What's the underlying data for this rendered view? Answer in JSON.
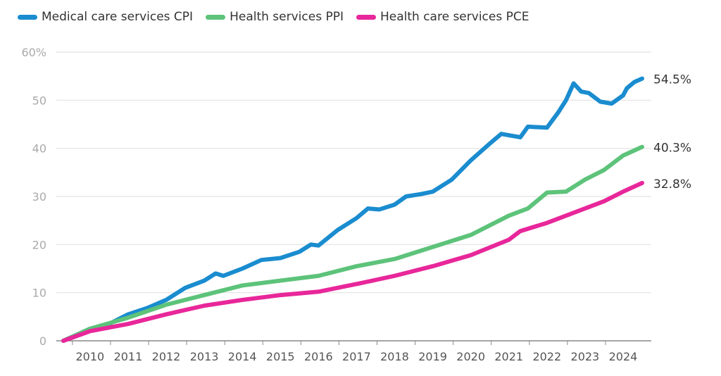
{
  "chart_data": {
    "type": "line",
    "title": "",
    "xlabel": "",
    "ylabel": "",
    "xlim": [
      2009.3,
      2024.5
    ],
    "ylim": [
      0,
      60
    ],
    "yticks": [
      0,
      10,
      20,
      30,
      40,
      50,
      60
    ],
    "ytick_labels": [
      "0",
      "10",
      "20",
      "30",
      "40",
      "50",
      "60%"
    ],
    "xticks": [
      2010,
      2011,
      2012,
      2013,
      2014,
      2015,
      2016,
      2017,
      2018,
      2019,
      2020,
      2021,
      2022,
      2023,
      2024
    ],
    "xtick_labels": [
      "2010",
      "2011",
      "2012",
      "2013",
      "2014",
      "2015",
      "2016",
      "2017",
      "2018",
      "2019",
      "2020",
      "2021",
      "2022",
      "2023",
      "2024"
    ],
    "grid": "horizontal",
    "legend_position": "top-left",
    "series": [
      {
        "name": "Medical care services CPI",
        "color": "#1a8ccf",
        "end_label": "54.5%",
        "points": [
          [
            2009.3,
            0
          ],
          [
            2010,
            2.5
          ],
          [
            2010.5,
            3.5
          ],
          [
            2011,
            5.5
          ],
          [
            2011.5,
            6.8
          ],
          [
            2012,
            8.5
          ],
          [
            2012.5,
            11
          ],
          [
            2013,
            12.5
          ],
          [
            2013.3,
            14
          ],
          [
            2013.5,
            13.5
          ],
          [
            2014,
            15
          ],
          [
            2014.5,
            16.8
          ],
          [
            2015,
            17.2
          ],
          [
            2015.5,
            18.5
          ],
          [
            2015.8,
            20
          ],
          [
            2016,
            19.8
          ],
          [
            2016.5,
            23
          ],
          [
            2017,
            25.5
          ],
          [
            2017.3,
            27.5
          ],
          [
            2017.6,
            27.3
          ],
          [
            2018,
            28.3
          ],
          [
            2018.3,
            30
          ],
          [
            2018.7,
            30.5
          ],
          [
            2019,
            31
          ],
          [
            2019.5,
            33.5
          ],
          [
            2020,
            37.5
          ],
          [
            2020.5,
            41
          ],
          [
            2020.8,
            43
          ],
          [
            2021.3,
            42.3
          ],
          [
            2021.5,
            44.5
          ],
          [
            2022,
            44.3
          ],
          [
            2022.3,
            47.5
          ],
          [
            2022.5,
            50
          ],
          [
            2022.7,
            53.5
          ],
          [
            2022.9,
            51.8
          ],
          [
            2023.1,
            51.5
          ],
          [
            2023.4,
            49.7
          ],
          [
            2023.7,
            49.3
          ],
          [
            2024,
            51
          ],
          [
            2024.1,
            52.5
          ],
          [
            2024.3,
            53.8
          ],
          [
            2024.5,
            54.5
          ]
        ]
      },
      {
        "name": "Health services PPI",
        "color": "#5dc37a",
        "end_label": "40.3%",
        "points": [
          [
            2009.3,
            0
          ],
          [
            2010,
            2.5
          ],
          [
            2011,
            4.8
          ],
          [
            2012,
            7.5
          ],
          [
            2013,
            9.5
          ],
          [
            2014,
            11.5
          ],
          [
            2015,
            12.5
          ],
          [
            2016,
            13.5
          ],
          [
            2017,
            15.5
          ],
          [
            2018,
            17
          ],
          [
            2019,
            19.5
          ],
          [
            2020,
            22
          ],
          [
            2021,
            26
          ],
          [
            2021.5,
            27.5
          ],
          [
            2022,
            30.8
          ],
          [
            2022.5,
            31
          ],
          [
            2023,
            33.5
          ],
          [
            2023.5,
            35.5
          ],
          [
            2024,
            38.5
          ],
          [
            2024.5,
            40.3
          ]
        ]
      },
      {
        "name": "Health care services PCE",
        "color": "#e8279a",
        "end_label": "32.8%",
        "points": [
          [
            2009.3,
            0
          ],
          [
            2010,
            2
          ],
          [
            2011,
            3.5
          ],
          [
            2012,
            5.5
          ],
          [
            2013,
            7.3
          ],
          [
            2014,
            8.5
          ],
          [
            2015,
            9.5
          ],
          [
            2016,
            10.2
          ],
          [
            2017,
            11.8
          ],
          [
            2018,
            13.5
          ],
          [
            2019,
            15.5
          ],
          [
            2020,
            17.8
          ],
          [
            2021,
            21
          ],
          [
            2021.3,
            22.8
          ],
          [
            2022,
            24.5
          ],
          [
            2022.5,
            26
          ],
          [
            2023,
            27.5
          ],
          [
            2023.5,
            29
          ],
          [
            2024,
            31
          ],
          [
            2024.5,
            32.8
          ]
        ]
      }
    ]
  }
}
